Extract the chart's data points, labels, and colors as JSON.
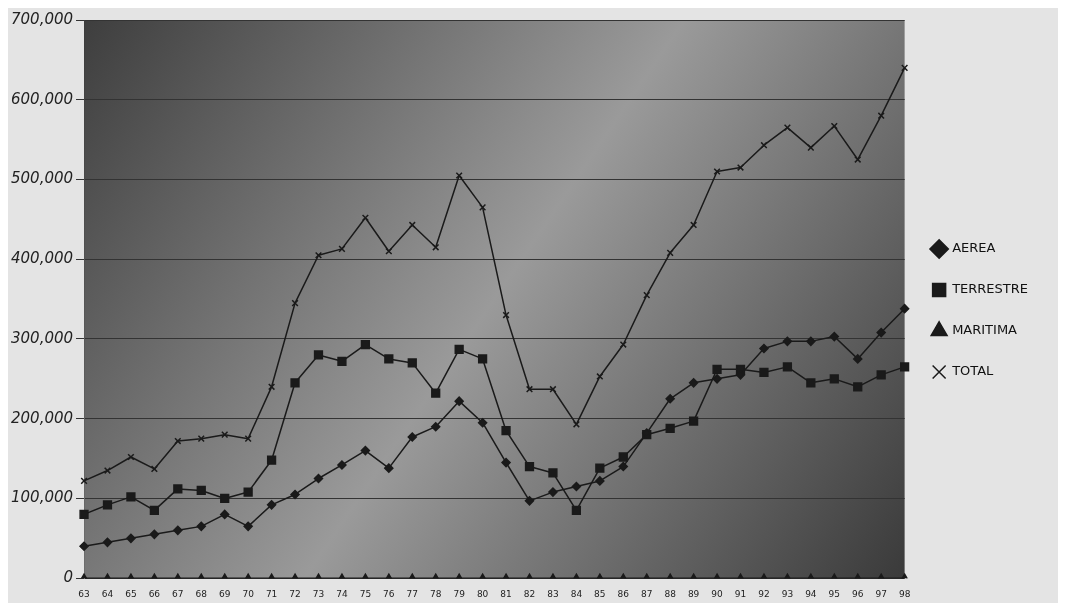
{
  "chart_data": {
    "type": "line",
    "categories": [
      "63",
      "64",
      "65",
      "66",
      "67",
      "68",
      "69",
      "70",
      "71",
      "72",
      "73",
      "74",
      "75",
      "76",
      "77",
      "78",
      "79",
      "80",
      "81",
      "82",
      "83",
      "84",
      "85",
      "86",
      "87",
      "88",
      "89",
      "90",
      "91",
      "92",
      "93",
      "94",
      "95",
      "96",
      "97",
      "98"
    ],
    "series": [
      {
        "name": "AEREA",
        "color": "#1a1a1a",
        "marker": "diamond",
        "values": [
          40000,
          45000,
          50000,
          55000,
          60000,
          65000,
          80000,
          65000,
          92000,
          105000,
          125000,
          142000,
          160000,
          138000,
          177000,
          190000,
          222000,
          195000,
          145000,
          97000,
          108000,
          115000,
          122000,
          140000,
          182000,
          225000,
          245000,
          250000,
          255000,
          288000,
          297000,
          297000,
          303000,
          275000,
          308000,
          338000
        ]
      },
      {
        "name": "TERRESTRE",
        "color": "#1a1a1a",
        "marker": "square",
        "values": [
          80000,
          92000,
          102000,
          85000,
          112000,
          110000,
          100000,
          108000,
          148000,
          245000,
          280000,
          272000,
          293000,
          275000,
          270000,
          232000,
          287000,
          275000,
          185000,
          140000,
          132000,
          85000,
          138000,
          152000,
          180000,
          188000,
          197000,
          262000,
          262000,
          258000,
          265000,
          245000,
          250000,
          240000,
          255000,
          265000
        ]
      },
      {
        "name": "MARITIMA",
        "color": "#1a1a1a",
        "marker": "triangle",
        "values": [
          0,
          0,
          0,
          0,
          0,
          0,
          0,
          0,
          0,
          0,
          0,
          0,
          0,
          0,
          0,
          0,
          0,
          0,
          0,
          0,
          0,
          0,
          0,
          0,
          0,
          0,
          0,
          0,
          0,
          0,
          0,
          0,
          0,
          0,
          0,
          0
        ]
      },
      {
        "name": "TOTAL",
        "color": "#1a1a1a",
        "marker": "cross",
        "values": [
          122000,
          135000,
          152000,
          137000,
          172000,
          175000,
          180000,
          175000,
          240000,
          345000,
          405000,
          413000,
          452000,
          410000,
          443000,
          415000,
          505000,
          465000,
          330000,
          237000,
          237000,
          193000,
          253000,
          293000,
          355000,
          408000,
          443000,
          510000,
          515000,
          543000,
          565000,
          540000,
          567000,
          525000,
          580000,
          640000
        ]
      }
    ],
    "ylim": [
      0,
      700000
    ],
    "yticks": [
      {
        "value": 0,
        "label": "0"
      },
      {
        "value": 100000,
        "label": "100,000"
      },
      {
        "value": 200000,
        "label": "200,000"
      },
      {
        "value": 300000,
        "label": "300,000"
      },
      {
        "value": 400000,
        "label": "400,000"
      },
      {
        "value": 500000,
        "label": "500,000"
      },
      {
        "value": 600000,
        "label": "600,000"
      },
      {
        "value": 700000,
        "label": "700,000"
      }
    ],
    "grid": "y",
    "legend": "right",
    "line_style": "solid"
  }
}
